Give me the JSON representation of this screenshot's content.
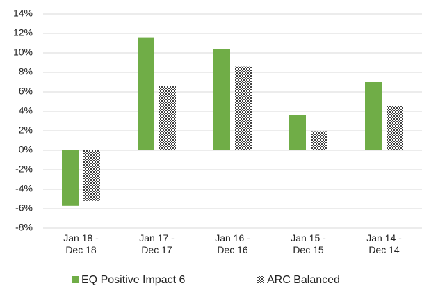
{
  "chart_data": {
    "type": "bar",
    "categories": [
      "Jan 18 -\nDec 18",
      "Jan 17 -\nDec 17",
      "Jan 16 -\nDec 16",
      "Jan 15 -\nDec 15",
      "Jan 14 -\nDec 14"
    ],
    "series": [
      {
        "name": "EQ Positive Impact 6",
        "color": "#70ad47",
        "values": [
          -5.7,
          11.6,
          10.4,
          3.6,
          7.0
        ]
      },
      {
        "name": "ARC Balanced",
        "color": "#404040",
        "pattern": "checker",
        "values": [
          -5.2,
          6.6,
          8.6,
          1.9,
          4.5
        ]
      }
    ],
    "ylim": [
      -8,
      14
    ],
    "yticks": [
      {
        "value": -8,
        "label": "-8%"
      },
      {
        "value": -6,
        "label": "-6%"
      },
      {
        "value": -4,
        "label": "-4%"
      },
      {
        "value": -2,
        "label": "-2%"
      },
      {
        "value": 0,
        "label": "0%"
      },
      {
        "value": 2,
        "label": "2%"
      },
      {
        "value": 4,
        "label": "4%"
      },
      {
        "value": 6,
        "label": "6%"
      },
      {
        "value": 8,
        "label": "8%"
      },
      {
        "value": 10,
        "label": "10%"
      },
      {
        "value": 12,
        "label": "12%"
      },
      {
        "value": 14,
        "label": "14%"
      }
    ],
    "grid": true,
    "legend": "bottom"
  }
}
